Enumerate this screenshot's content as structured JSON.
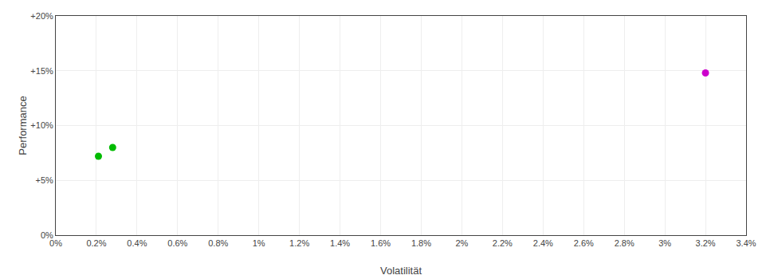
{
  "chart_data": {
    "type": "scatter",
    "xlabel": "Volatilität",
    "ylabel": "Performance",
    "x": [
      0.0021,
      0.0028,
      0.032
    ],
    "values": [
      0.072,
      0.08,
      0.148
    ],
    "colors": [
      "#00bb00",
      "#00bb00",
      "#cc00cc"
    ],
    "xlim": [
      0.0,
      0.034
    ],
    "ylim": [
      0.0,
      0.2
    ],
    "xticks": [
      {
        "value": 0.0,
        "label": "0%"
      },
      {
        "value": 0.002,
        "label": "0.2%"
      },
      {
        "value": 0.004,
        "label": "0.4%"
      },
      {
        "value": 0.006,
        "label": "0.6%"
      },
      {
        "value": 0.008,
        "label": "0.8%"
      },
      {
        "value": 0.01,
        "label": "1%"
      },
      {
        "value": 0.012,
        "label": "1.2%"
      },
      {
        "value": 0.014,
        "label": "1.4%"
      },
      {
        "value": 0.016,
        "label": "1.6%"
      },
      {
        "value": 0.018,
        "label": "1.8%"
      },
      {
        "value": 0.02,
        "label": "2%"
      },
      {
        "value": 0.022,
        "label": "2.2%"
      },
      {
        "value": 0.024,
        "label": "2.4%"
      },
      {
        "value": 0.026,
        "label": "2.6%"
      },
      {
        "value": 0.028,
        "label": "2.8%"
      },
      {
        "value": 0.03,
        "label": "3%"
      },
      {
        "value": 0.032,
        "label": "3.2%"
      },
      {
        "value": 0.034,
        "label": "3.4%"
      }
    ],
    "yticks": [
      {
        "value": 0.0,
        "label": "0%"
      },
      {
        "value": 0.05,
        "label": "+5%"
      },
      {
        "value": 0.1,
        "label": "+10%"
      },
      {
        "value": 0.15,
        "label": "+15%"
      },
      {
        "value": 0.2,
        "label": "+20%"
      }
    ],
    "grid": true
  }
}
